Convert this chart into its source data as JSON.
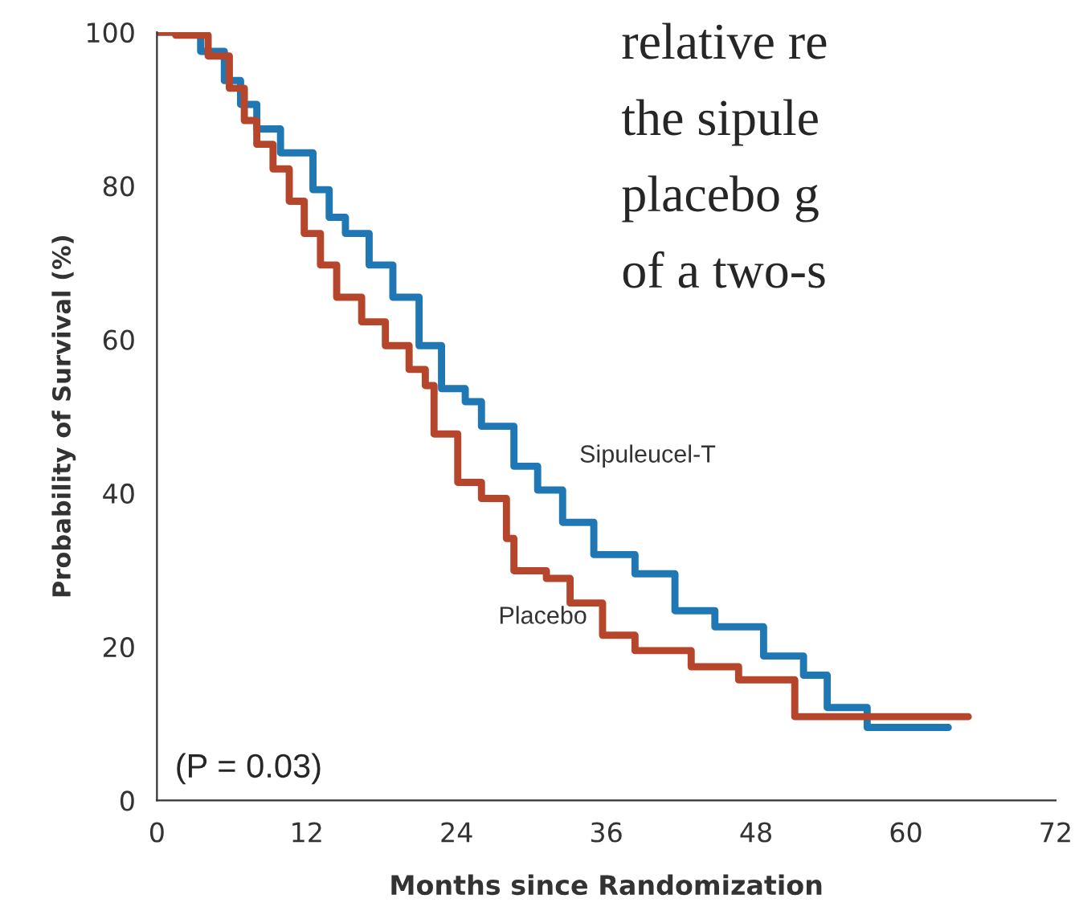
{
  "chart_data": {
    "type": "step",
    "xlabel": "Months since Randomization",
    "ylabel": "Probability of Survival (%)",
    "xlim": [
      0,
      72
    ],
    "xticks": [
      0,
      12,
      24,
      36,
      48,
      60,
      72
    ],
    "ylim": [
      0,
      100
    ],
    "yticks": [
      0,
      20,
      40,
      60,
      80,
      100
    ],
    "grid": false,
    "legend": false,
    "series": [
      {
        "name": "Sipuleucel-T",
        "color": "#1f77b4",
        "x": [
          0,
          3.5,
          5.4,
          6.7,
          8,
          9.9,
          12.5,
          13.8,
          15.1,
          17,
          18.9,
          21,
          22.8,
          24.7,
          26,
          28.6,
          30.5,
          32.5,
          35,
          38.3,
          41.5,
          44.7,
          48.6,
          51.8,
          53.7,
          56.9,
          63.4
        ],
        "values": [
          100,
          97.5,
          93.7,
          90.6,
          87.4,
          84.3,
          79.5,
          75.9,
          73.8,
          69.7,
          65.5,
          59.2,
          53.6,
          51.9,
          48.7,
          43.5,
          40.4,
          36.2,
          32,
          29.5,
          24.7,
          22.6,
          18.8,
          16.3,
          12.1,
          9.5,
          9.5
        ]
      },
      {
        "name": "Placebo",
        "color": "#b5462c",
        "x": [
          0,
          1.5,
          4.1,
          5.8,
          7,
          8,
          9.3,
          10.6,
          11.8,
          13.1,
          14.4,
          16.4,
          18.3,
          20.2,
          21.5,
          22.2,
          24.1,
          26,
          28,
          28.6,
          31.2,
          33.1,
          35.7,
          38.3,
          42.8,
          46.6,
          51.1,
          65
        ],
        "values": [
          100,
          99.6,
          96.9,
          92.7,
          88.5,
          85.4,
          82.2,
          78,
          73.8,
          69.7,
          65.5,
          62.3,
          59.2,
          56.1,
          54,
          47.7,
          41.4,
          39.3,
          34.1,
          29.9,
          28.9,
          25.7,
          21.5,
          19.5,
          17.4,
          15.7,
          10.9,
          10.9
        ]
      }
    ],
    "annotations": [
      "(P = 0.03)",
      "relative re",
      "the sipule",
      "placebo g",
      "of a two-s"
    ]
  }
}
